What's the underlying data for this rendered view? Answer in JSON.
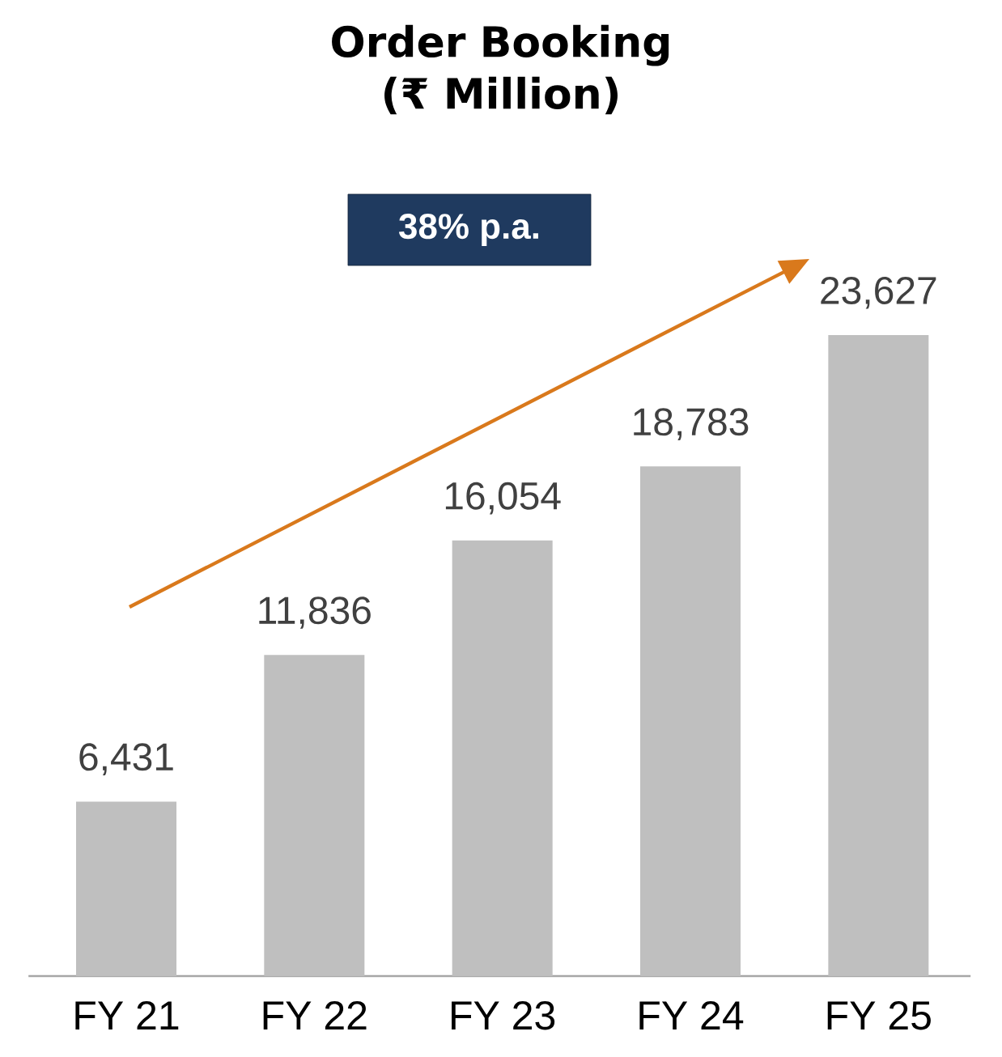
{
  "chart_data": {
    "type": "bar",
    "title": "Order Booking (₹ Million)",
    "categories": [
      "FY 21",
      "FY 22",
      "FY 23",
      "FY 24",
      "FY 25"
    ],
    "values": [
      6431,
      11836,
      16054,
      18783,
      23627
    ],
    "value_labels": [
      "6,431",
      "11,836",
      "16,054",
      "18,783",
      "23,627"
    ],
    "color": "#bfbfbf",
    "annotations": [
      "38% p.a."
    ]
  }
}
